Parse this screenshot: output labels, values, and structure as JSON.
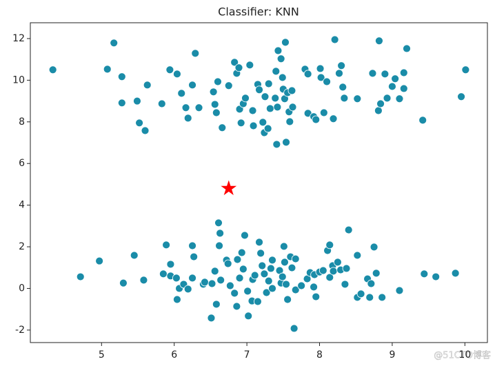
{
  "chart_data": {
    "type": "scatter",
    "title": "Classifier: KNN",
    "color": "#1a8ca8",
    "x": [
      4.33,
      5.08,
      5.17,
      5.28,
      5.28,
      5.49,
      5.52,
      5.6,
      5.63,
      5.83,
      5.94,
      6.04,
      6.1,
      6.16,
      6.19,
      6.25,
      6.29,
      6.34,
      6.54,
      6.56,
      6.58,
      6.66,
      6.6,
      6.75,
      6.83,
      6.86,
      6.89,
      6.9,
      6.92,
      6.95,
      6.98,
      7.04,
      7.08,
      7.09,
      7.15,
      7.17,
      7.22,
      7.24,
      7.25,
      7.29,
      7.3,
      7.32,
      7.39,
      7.4,
      7.41,
      7.42,
      7.43,
      7.47,
      7.49,
      7.5,
      7.52,
      7.53,
      7.54,
      7.56,
      7.58,
      7.59,
      7.62,
      7.63,
      7.8,
      7.84,
      7.84,
      7.92,
      7.95,
      8.01,
      8.02,
      8.06,
      8.1,
      8.19,
      8.21,
      8.27,
      8.3,
      8.32,
      8.34,
      8.52,
      8.73,
      8.81,
      8.82,
      8.84,
      8.9,
      8.93,
      9.0,
      9.04,
      9.1,
      9.16,
      9.16,
      9.2,
      9.42,
      9.95,
      10.01,
      4.71,
      4.97,
      5.3,
      5.45,
      5.58,
      5.85,
      5.89,
      5.95,
      5.95,
      6.03,
      6.04,
      6.07,
      6.13,
      6.19,
      6.25,
      6.25,
      6.27,
      6.4,
      6.42,
      6.51,
      6.52,
      6.56,
      6.58,
      6.61,
      6.62,
      6.63,
      6.64,
      6.72,
      6.74,
      6.77,
      6.83,
      6.86,
      6.87,
      6.9,
      6.93,
      6.95,
      6.97,
      7.01,
      7.02,
      7.07,
      7.08,
      7.11,
      7.15,
      7.17,
      7.19,
      7.21,
      7.24,
      7.27,
      7.3,
      7.33,
      7.35,
      7.35,
      7.45,
      7.47,
      7.49,
      7.51,
      7.52,
      7.54,
      7.56,
      7.6,
      7.62,
      7.65,
      7.67,
      7.67,
      7.75,
      7.83,
      7.87,
      7.92,
      7.93,
      7.95,
      8.0,
      8.05,
      8.11,
      8.14,
      8.14,
      8.18,
      8.19,
      8.25,
      8.29,
      8.37,
      8.35,
      8.4,
      8.52,
      8.52,
      8.57,
      8.66,
      8.69,
      8.71,
      8.75,
      8.78,
      8.86,
      9.1,
      9.44,
      9.6,
      9.87
    ],
    "y": [
      10.5,
      10.53,
      11.79,
      10.17,
      8.91,
      9.0,
      7.95,
      7.58,
      9.77,
      8.87,
      10.5,
      10.3,
      9.37,
      8.68,
      8.18,
      9.77,
      11.29,
      8.68,
      9.44,
      8.84,
      8.44,
      7.72,
      9.93,
      9.74,
      10.86,
      10.33,
      10.6,
      8.61,
      7.95,
      8.87,
      9.14,
      10.73,
      8.54,
      7.81,
      9.8,
      9.54,
      7.98,
      7.48,
      9.21,
      7.68,
      9.83,
      8.64,
      9.14,
      10.43,
      6.92,
      8.71,
      11.42,
      11.03,
      10.13,
      9.57,
      9.11,
      11.82,
      7.02,
      9.4,
      8.48,
      8.01,
      9.5,
      8.71,
      10.53,
      10.3,
      8.41,
      8.25,
      8.11,
      10.56,
      10.13,
      8.44,
      9.93,
      8.15,
      11.95,
      10.33,
      10.7,
      9.67,
      9.14,
      9.11,
      10.33,
      8.54,
      11.89,
      8.87,
      10.3,
      9.14,
      9.7,
      10.07,
      9.11,
      10.36,
      9.6,
      11.52,
      8.08,
      9.21,
      10.5,
      0.56,
      1.32,
      0.26,
      1.59,
      0.4,
      0.7,
      2.09,
      1.16,
      0.6,
      0.5,
      -0.53,
      0.0,
      0.2,
      -0.03,
      0.5,
      2.05,
      1.52,
      0.2,
      0.3,
      -1.42,
      0.23,
      0.83,
      -0.76,
      3.15,
      2.05,
      2.65,
      0.4,
      1.36,
      1.19,
      0.13,
      -0.23,
      -0.86,
      1.39,
      0.5,
      1.72,
      0.93,
      2.55,
      -0.13,
      -1.32,
      -0.6,
      0.43,
      0.63,
      -0.63,
      2.22,
      1.69,
      1.09,
      0.7,
      -0.2,
      0.36,
      0.96,
      0.0,
      1.36,
      0.86,
      0.26,
      0.56,
      2.02,
      1.26,
      0.2,
      -0.53,
      1.52,
      0.99,
      -1.92,
      1.42,
      -0.07,
      0.13,
      0.46,
      0.76,
      0.07,
      0.66,
      -0.4,
      0.79,
      0.86,
      1.82,
      0.53,
      2.09,
      1.09,
      0.83,
      1.26,
      0.89,
      0.96,
      0.2,
      2.81,
      1.59,
      -0.43,
      -0.26,
      0.46,
      -0.43,
      0.23,
      1.99,
      0.73,
      -0.43,
      -0.1,
      0.7,
      0.56,
      0.73
    ],
    "highlight": {
      "x": 6.75,
      "y": 4.8,
      "color": "#ff0000"
    },
    "xlim": [
      4.02,
      10.31
    ],
    "ylim": [
      -2.6,
      12.76
    ],
    "xticks": [
      5,
      6,
      7,
      8,
      9,
      10
    ],
    "yticks": [
      -2,
      0,
      2,
      4,
      6,
      8,
      10,
      12
    ]
  },
  "watermark": "@51CTO博客"
}
